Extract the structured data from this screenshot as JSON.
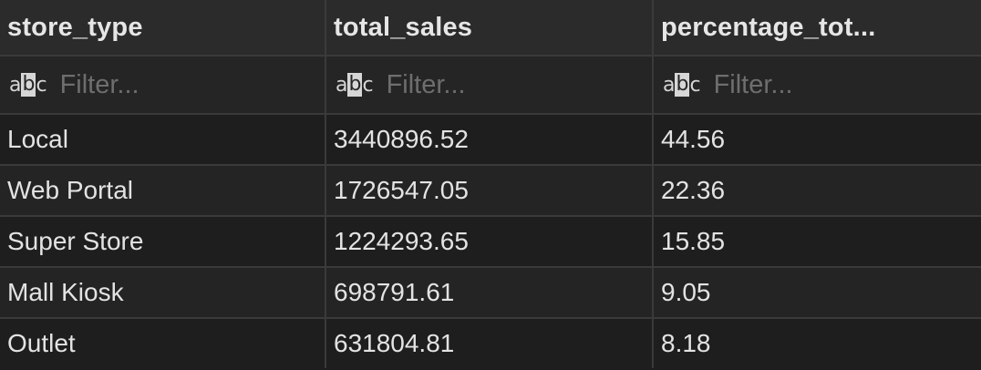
{
  "columns": [
    {
      "label": "store_type"
    },
    {
      "label": "total_sales"
    },
    {
      "label": "percentage_tot..."
    }
  ],
  "filter": {
    "icon": "text-filter-icon",
    "icon_left": "a",
    "icon_mid": "b",
    "icon_right": "c",
    "placeholder": "Filter..."
  },
  "rows": [
    {
      "store_type": "Local",
      "total_sales": "3440896.52",
      "percentage": "44.56"
    },
    {
      "store_type": "Web Portal",
      "total_sales": "1726547.05",
      "percentage": "22.36"
    },
    {
      "store_type": "Super Store",
      "total_sales": "1224293.65",
      "percentage": "15.85"
    },
    {
      "store_type": "Mall Kiosk",
      "total_sales": "698791.61",
      "percentage": "9.05"
    },
    {
      "store_type": "Outlet",
      "total_sales": "631804.81",
      "percentage": "8.18"
    }
  ],
  "colors": {
    "background": "#1e1e1e",
    "header_background": "#2b2b2b",
    "grid_line": "#3a3a3a",
    "text": "#e3e3e3",
    "placeholder": "#6e6e6e"
  }
}
